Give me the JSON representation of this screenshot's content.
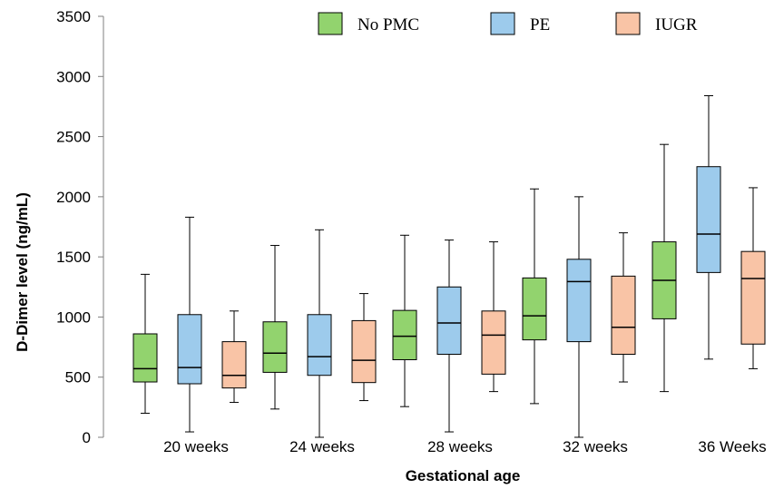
{
  "chart_data": {
    "type": "boxplot",
    "title": "",
    "xlabel": "Gestational age",
    "ylabel": "D-Dimer level (ng/mL)",
    "ylim": [
      0,
      3500
    ],
    "yticks": [
      0,
      500,
      1000,
      1500,
      2000,
      2500,
      3000,
      3500
    ],
    "grid": false,
    "legend_position": "top",
    "categories": [
      "20 weeks",
      "24 weeks",
      "28 weeks",
      "32 weeks",
      "36 Weeks"
    ],
    "series": [
      {
        "name": "No PMC",
        "color": "#92d36e",
        "boxes": [
          {
            "min": 200,
            "q1": 460,
            "median": 570,
            "q3": 860,
            "max": 1355
          },
          {
            "min": 235,
            "q1": 540,
            "median": 700,
            "q3": 960,
            "max": 1595
          },
          {
            "min": 255,
            "q1": 645,
            "median": 840,
            "q3": 1055,
            "max": 1680
          },
          {
            "min": 280,
            "q1": 810,
            "median": 1010,
            "q3": 1325,
            "max": 2065
          },
          {
            "min": 380,
            "q1": 985,
            "median": 1305,
            "q3": 1625,
            "max": 2435
          }
        ]
      },
      {
        "name": "PE",
        "color": "#9dcbec",
        "boxes": [
          {
            "min": 45,
            "q1": 445,
            "median": 580,
            "q3": 1020,
            "max": 1830
          },
          {
            "min": 0,
            "q1": 515,
            "median": 670,
            "q3": 1020,
            "max": 1725
          },
          {
            "min": 45,
            "q1": 690,
            "median": 950,
            "q3": 1250,
            "max": 1640
          },
          {
            "min": 0,
            "q1": 795,
            "median": 1295,
            "q3": 1480,
            "max": 2000
          },
          {
            "min": 650,
            "q1": 1370,
            "median": 1690,
            "q3": 2250,
            "max": 2840
          }
        ]
      },
      {
        "name": "IUGR",
        "color": "#f9c4a6",
        "boxes": [
          {
            "min": 290,
            "q1": 410,
            "median": 515,
            "q3": 795,
            "max": 1050
          },
          {
            "min": 305,
            "q1": 455,
            "median": 640,
            "q3": 970,
            "max": 1195
          },
          {
            "min": 380,
            "q1": 525,
            "median": 850,
            "q3": 1050,
            "max": 1625
          },
          {
            "min": 460,
            "q1": 690,
            "median": 915,
            "q3": 1340,
            "max": 1700
          },
          {
            "min": 570,
            "q1": 775,
            "median": 1320,
            "q3": 1545,
            "max": 2075
          }
        ]
      }
    ]
  }
}
